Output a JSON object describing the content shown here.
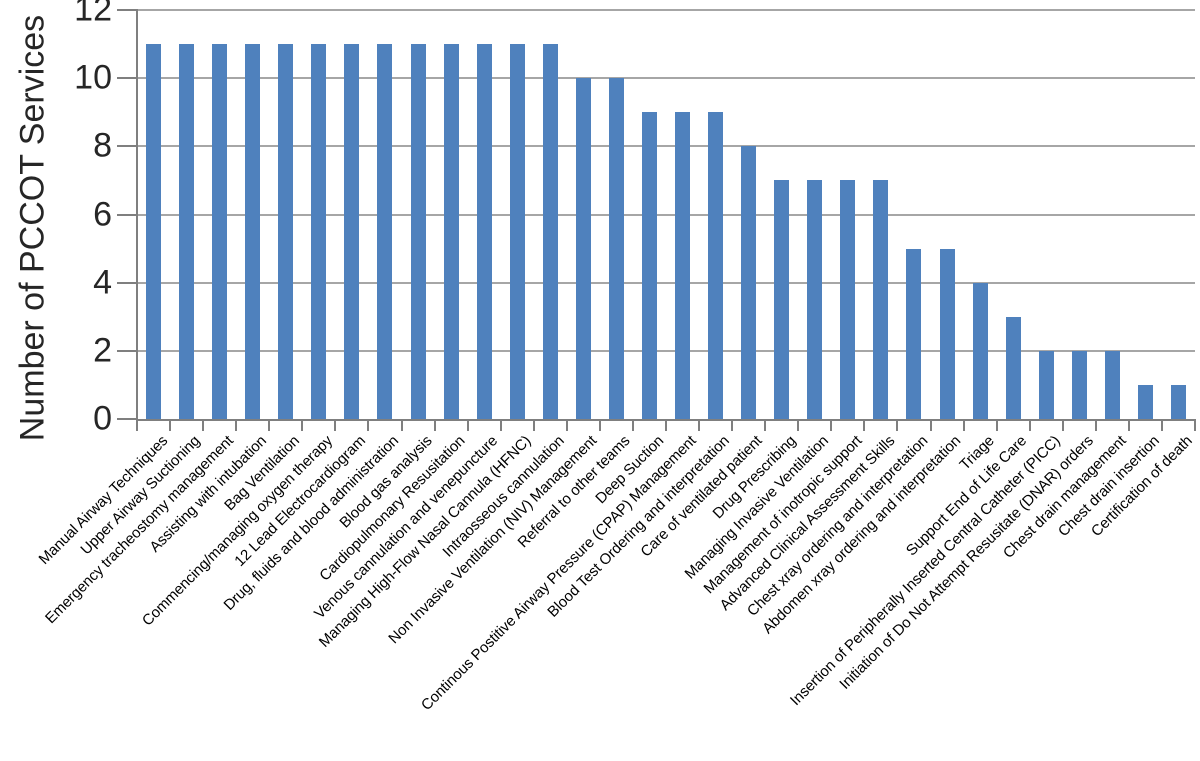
{
  "chart_data": {
    "type": "bar",
    "title": "",
    "ylabel": "Number of PCCOT Services",
    "xlabel": "",
    "ylim": [
      0,
      12
    ],
    "yticks": [
      0,
      2,
      4,
      6,
      8,
      10,
      12
    ],
    "grid": true,
    "legend": "none",
    "bar_color": "#4f81bd",
    "gridline_color": "#a6a6a6",
    "axis_color": "#7f7f7f",
    "categories": [
      "Manual Airway Techniques",
      "Upper Airway Suctioning",
      "Emergency tracheostomy management",
      "Assisting with intubation",
      "Bag Ventilation",
      "Commencing/managing oxygen therapy",
      "12 Lead Electrocardiogram",
      "Drug, fluids and blood administration",
      "Blood gas analysis",
      "Cardiopulmonary Resusitation",
      "Venous cannulation and venepuncture",
      "Managing High-Flow Nasal Cannula (HFNC)",
      "Intraosseous cannulation",
      "Non Invasive Ventilation (NIV) Management",
      "Referral to other teams",
      "Deep Suction",
      "Continous Postitive Airway Pressure (CPAP) Management",
      "Blood Test Ordering and interpretation",
      "Care of ventilated patient",
      "Drug Prescribing",
      "Managing Invasive Ventilation",
      "Management of inotropic support",
      "Advanced Clinical Assessment Skills",
      "Chest xray ordering and interpretation",
      "Abdomen xray ordering and interpretation",
      "Triage",
      "Support End of Life Care",
      "Insertion of Peripherally Inserted Central Catheter (PICC)",
      "Initiation of Do Not Attempt Resusitate (DNAR) orders",
      "Chest drain management",
      "Chest drain insertion",
      "Certification of death"
    ],
    "values": [
      11,
      11,
      11,
      11,
      11,
      11,
      11,
      11,
      11,
      11,
      11,
      11,
      11,
      10,
      10,
      9,
      9,
      9,
      8,
      7,
      7,
      7,
      7,
      5,
      5,
      4,
      3,
      2,
      2,
      2,
      1,
      1
    ]
  }
}
